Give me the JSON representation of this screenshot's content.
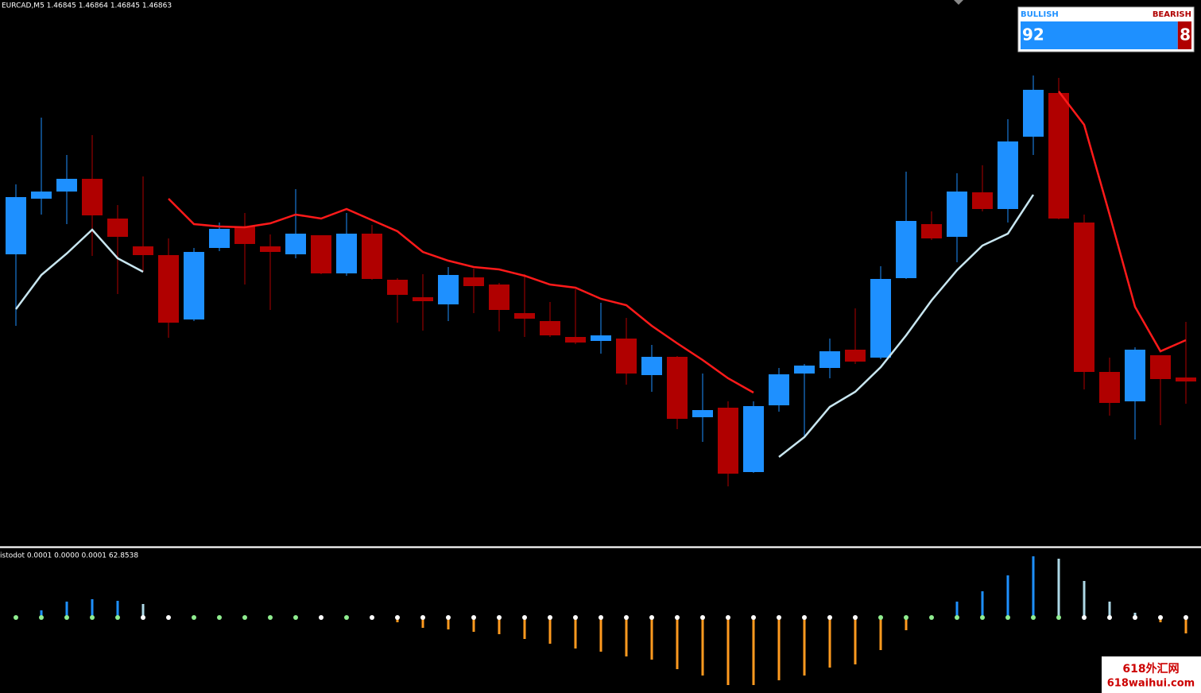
{
  "chart_data": {
    "type": "candlestick",
    "title": "EURCAD,M5  1.46845 1.46864 1.46845 1.46863",
    "up_color": "#1e90ff",
    "down_color": "#b00000",
    "open": [
      380,
      450,
      459,
      475,
      425,
      390,
      379,
      298,
      388,
      415,
      390,
      380,
      404,
      356,
      406,
      348,
      326,
      317,
      351,
      342,
      306,
      296,
      276,
      271,
      274,
      228,
      251,
      175,
      187,
      106,
      190,
      230,
      237,
      260,
      250,
      350,
      418,
      402,
      458,
      437,
      528,
      583,
      420,
      232,
      195,
      253,
      225
    ],
    "high": [
      468,
      552,
      505,
      530,
      442,
      478,
      400,
      388,
      420,
      432,
      405,
      462,
      404,
      432,
      417,
      350,
      355,
      364,
      362,
      344,
      355,
      320,
      336,
      319,
      300,
      266,
      252,
      230,
      195,
      195,
      237,
      242,
      274,
      312,
      365,
      484,
      434,
      482,
      492,
      550,
      605,
      602,
      430,
      250,
      263,
      253,
      295
    ],
    "low": [
      290,
      430,
      418,
      378,
      330,
      358,
      275,
      296,
      384,
      342,
      310,
      375,
      355,
      353,
      348,
      294,
      284,
      296,
      306,
      283,
      276,
      276,
      267,
      255,
      216,
      207,
      160,
      144,
      88,
      105,
      182,
      150,
      224,
      242,
      248,
      349,
      398,
      370,
      434,
      420,
      505,
      424,
      210,
      177,
      147,
      165,
      192
    ],
    "close": [
      452,
      459,
      475,
      429,
      402,
      379,
      294,
      383,
      412,
      393,
      383,
      406,
      356,
      406,
      349,
      329,
      321,
      354,
      340,
      310,
      299,
      278,
      269,
      278,
      230,
      251,
      173,
      184,
      104,
      189,
      229,
      240,
      258,
      245,
      349,
      422,
      400,
      459,
      437,
      522,
      587,
      425,
      232,
      193,
      260,
      223,
      220
    ],
    "series": [
      {
        "color": "#ff1a1a",
        "values": [
          null,
          null,
          null,
          null,
          null,
          null,
          450,
          418,
          415,
          414,
          419,
          430,
          425,
          437,
          423,
          409,
          383,
          372,
          364,
          361,
          353,
          342,
          338,
          324,
          316,
          290,
          268,
          247,
          224,
          206,
          null,
          null,
          null,
          null,
          null,
          null,
          null,
          null,
          null,
          null,
          null,
          585,
          543,
          430,
          314,
          258,
          272
        ]
      },
      {
        "color": "#c8e6f0",
        "values": [
          311,
          354,
          381,
          411,
          375,
          358,
          null,
          null,
          null,
          null,
          null,
          null,
          null,
          null,
          null,
          null,
          null,
          null,
          null,
          null,
          null,
          null,
          null,
          null,
          null,
          null,
          null,
          null,
          null,
          null,
          125,
          150,
          188,
          207,
          238,
          278,
          322,
          360,
          391,
          406,
          455,
          null,
          null,
          null,
          null,
          null,
          null
        ]
      }
    ],
    "indicator": {
      "title": "istodot 0.0001 0.0000 0.0001 62.8538",
      "values": [
        0,
        9,
        20,
        23,
        21,
        17,
        0,
        0,
        0,
        0,
        0,
        0,
        0,
        0,
        0,
        -6,
        -13,
        -15,
        -18,
        -21,
        -27,
        -33,
        -39,
        -43,
        -49,
        -53,
        -65,
        -73,
        -85,
        -85,
        -79,
        -73,
        -63,
        -59,
        -41,
        -16,
        0,
        20,
        33,
        53,
        77,
        74,
        46,
        20,
        6,
        -6,
        -20
      ],
      "colors": [
        "#1e90ff",
        "#1e90ff",
        "#1e90ff",
        "#1e90ff",
        "#1e90ff",
        "#add8e6",
        "#1e90ff",
        "#1e90ff",
        "#1e90ff",
        "#1e90ff",
        "#1e90ff",
        "#1e90ff",
        "#1e90ff",
        "#1e90ff",
        "#1e90ff",
        "#ff9a1f",
        "#ff9a1f",
        "#ff9a1f",
        "#ff9a1f",
        "#ff9a1f",
        "#ff9a1f",
        "#ff9a1f",
        "#ff9a1f",
        "#ff9a1f",
        "#ff9a1f",
        "#ff9a1f",
        "#ff9a1f",
        "#ff9a1f",
        "#ff9a1f",
        "#ff9a1f",
        "#ff9a1f",
        "#ff9a1f",
        "#ff9a1f",
        "#ff9a1f",
        "#ff9a1f",
        "#ff9a1f",
        "#1e90ff",
        "#1e90ff",
        "#1e90ff",
        "#1e90ff",
        "#1e90ff",
        "#add8e6",
        "#add8e6",
        "#add8e6",
        "#add8e6",
        "#ff9a1f",
        "#ff9a1f"
      ],
      "dot_colors": [
        "#90ee90",
        "#90ee90",
        "#90ee90",
        "#90ee90",
        "#90ee90",
        "#ffffff",
        "#ffffff",
        "#90ee90",
        "#90ee90",
        "#90ee90",
        "#90ee90",
        "#90ee90",
        "#ffffff",
        "#90ee90",
        "#ffffff",
        "#ffffff",
        "#ffffff",
        "#ffffff",
        "#ffffff",
        "#ffffff",
        "#ffffff",
        "#ffffff",
        "#ffffff",
        "#ffffff",
        "#ffffff",
        "#ffffff",
        "#ffffff",
        "#ffffff",
        "#ffffff",
        "#ffffff",
        "#ffffff",
        "#ffffff",
        "#ffffff",
        "#ffffff",
        "#90ee90",
        "#90ee90",
        "#90ee90",
        "#90ee90",
        "#90ee90",
        "#90ee90",
        "#90ee90",
        "#90ee90",
        "#ffffff",
        "#ffffff",
        "#ffffff",
        "#ffffff",
        "#ffffff"
      ]
    },
    "gauge": {
      "bull_label": "BULLISH",
      "bear_label": "BEARISH",
      "bull": 92,
      "bear": 8
    },
    "watermark": [
      "618外汇网",
      "618waihui.com"
    ]
  }
}
